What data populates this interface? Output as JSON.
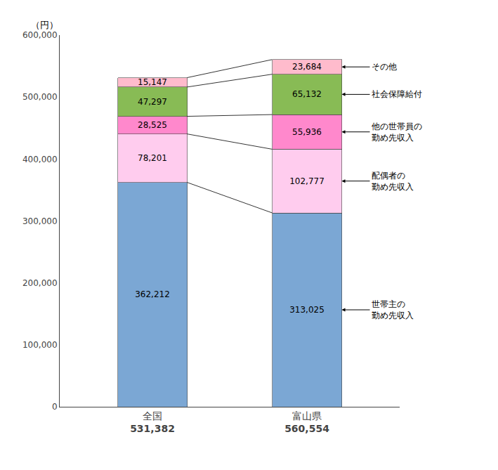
{
  "chart_data": {
    "type": "bar",
    "stacked": true,
    "data_labels": true,
    "grid": false,
    "categories": [
      "全国",
      "富山県"
    ],
    "totals": [
      531382,
      560554
    ],
    "total_labels": [
      "531,382",
      "560,554"
    ],
    "series": [
      {
        "name": "世帯主の\n勤め先収入",
        "color": "#7ba7d4",
        "values": [
          362212,
          313025
        ],
        "value_labels": [
          "362,212",
          "313,025"
        ]
      },
      {
        "name": "配偶者の\n勤め先収入",
        "color": "#ffccee",
        "values": [
          78201,
          102777
        ],
        "value_labels": [
          "78,201",
          "102,777"
        ]
      },
      {
        "name": "他の世帯員の\n勤め先収入",
        "color": "#ff88cc",
        "values": [
          28525,
          55936
        ],
        "value_labels": [
          "28,525",
          "55,936"
        ]
      },
      {
        "name": "社会保障給付",
        "color": "#88bb55",
        "values": [
          47297,
          65132
        ],
        "value_labels": [
          "47,297",
          "65,132"
        ]
      },
      {
        "name": "その他",
        "color": "#ffbbcc",
        "values": [
          15147,
          23684
        ],
        "value_labels": [
          "15,147",
          "23,684"
        ]
      }
    ],
    "ylabel": "（円）",
    "ylim": [
      0,
      600000
    ],
    "yticks": [
      0,
      {
        "value": 100000,
        "label": "100,000"
      },
      {
        "value": 200000,
        "label": "200,000"
      },
      {
        "value": 300000,
        "label": "300,000"
      },
      {
        "value": 400000,
        "label": "400,000"
      },
      {
        "value": 500000,
        "label": "500,000"
      },
      {
        "value": 600000,
        "label": "600,000"
      }
    ]
  }
}
